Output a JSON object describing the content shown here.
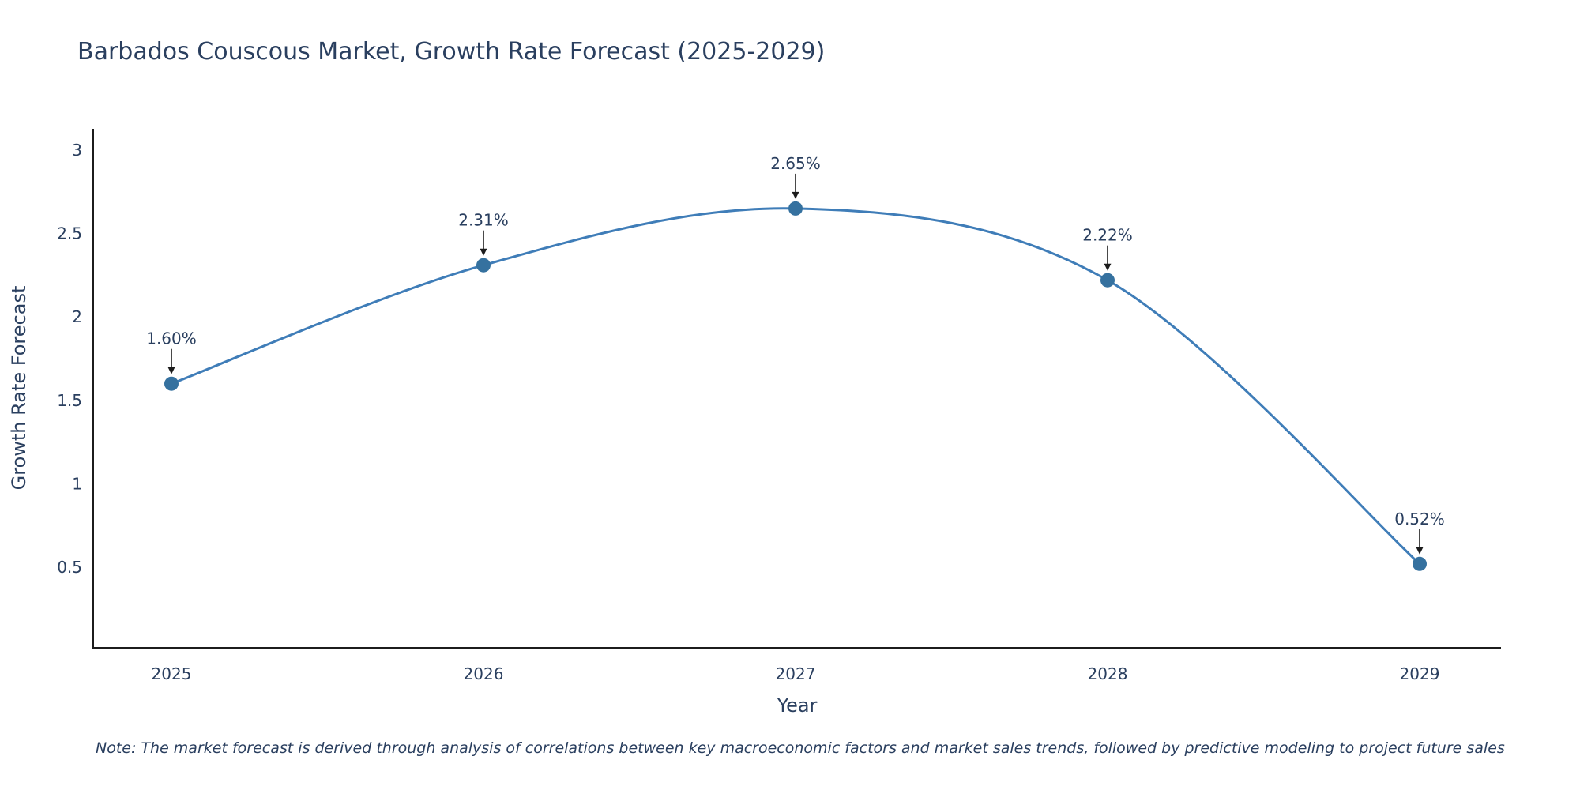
{
  "title": "Barbados Couscous Market, Growth Rate Forecast (2025-2029)",
  "chart_data": {
    "type": "line",
    "title": "Barbados Couscous Market, Growth Rate Forecast (2025-2029)",
    "categories": [
      "2025",
      "2026",
      "2027",
      "2028",
      "2029"
    ],
    "values": [
      1.6,
      2.31,
      2.65,
      2.22,
      0.52
    ],
    "point_labels": [
      "1.60%",
      "2.31%",
      "2.65%",
      "2.22%",
      "0.52%"
    ],
    "xlabel": "Year",
    "ylabel": "Growth Rate Forecast",
    "ylim": [
      0,
      3.125
    ],
    "yticks": [
      "0.5",
      "1",
      "1.5",
      "2",
      "2.5",
      "3"
    ],
    "ytick_values": [
      0.5,
      1,
      1.5,
      2,
      2.5,
      3
    ],
    "line_shape": "spline",
    "grid": false,
    "legend": "none",
    "colors": {
      "line": "#3f7db8",
      "marker": "#35719f",
      "title": "#2a3f5f",
      "axis": "#1c1c1c",
      "annotation_text": "#2a3f5f",
      "arrow": "#1c1c1c",
      "background": "#ffffff"
    }
  },
  "note": "Note: The market forecast is derived through analysis of correlations between key macroeconomic factors and market sales trends, followed by predictive modeling to project future sales"
}
